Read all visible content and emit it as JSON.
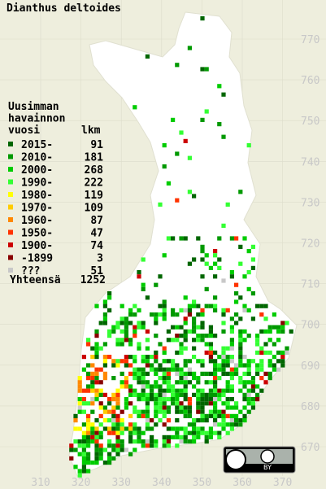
{
  "title": "Dianthus deltoides",
  "legend": {
    "heading": [
      "Uusimman",
      "havainnon",
      "vuosi"
    ],
    "count_heading": "lkm",
    "entries": [
      {
        "label": "2015-",
        "count": 91,
        "color": "#006600"
      },
      {
        "label": "2010-",
        "count": 181,
        "color": "#009900"
      },
      {
        "label": "2000-",
        "count": 268,
        "color": "#00cc00"
      },
      {
        "label": "1990-",
        "count": 222,
        "color": "#33ff33"
      },
      {
        "label": "1980-",
        "count": 119,
        "color": "#ffff00"
      },
      {
        "label": "1970-",
        "count": 109,
        "color": "#ffcc00"
      },
      {
        "label": "1960-",
        "count": 87,
        "color": "#ff8800"
      },
      {
        "label": "1950-",
        "count": 47,
        "color": "#ff3300"
      },
      {
        "label": "1900-",
        "count": 74,
        "color": "#cc0000"
      },
      {
        "label": "-1899",
        "count": 3,
        "color": "#880000"
      },
      {
        "label": "???",
        "count": 51,
        "color": "#c8c8c8"
      }
    ],
    "total_label": "Yhteensä",
    "total": 1252
  },
  "grid": {
    "y_labels": [
      770,
      760,
      750,
      740,
      730,
      720,
      710,
      700,
      690,
      680,
      670
    ],
    "x_labels": [
      310,
      320,
      330,
      340,
      350,
      360,
      370
    ]
  },
  "license": {
    "badge": "BY"
  }
}
